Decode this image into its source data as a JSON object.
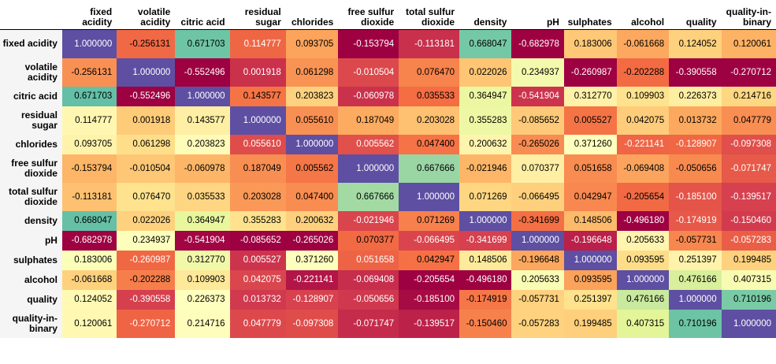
{
  "chart_data": {
    "type": "heatmap",
    "columns": [
      "fixed acidity",
      "volatile acidity",
      "citric acid",
      "residual sugar",
      "chlorides",
      "free sulfur dioxide",
      "total sulfur dioxide",
      "density",
      "pH",
      "sulphates",
      "alcohol",
      "quality",
      "quality-in-binary"
    ],
    "rows": [
      "fixed acidity",
      "volatile acidity",
      "citric acid",
      "residual sugar",
      "chlorides",
      "free sulfur dioxide",
      "total sulfur dioxide",
      "density",
      "pH",
      "sulphates",
      "alcohol",
      "quality",
      "quality-in-binary"
    ],
    "values": [
      [
        1.0,
        -0.256131,
        0.671703,
        0.114777,
        0.093705,
        -0.153794,
        -0.113181,
        0.668047,
        -0.682978,
        0.183006,
        -0.061668,
        0.124052,
        0.120061
      ],
      [
        -0.256131,
        1.0,
        -0.552496,
        0.001918,
        0.061298,
        -0.010504,
        0.07647,
        0.022026,
        0.234937,
        -0.260987,
        -0.202288,
        -0.390558,
        -0.270712
      ],
      [
        0.671703,
        -0.552496,
        1.0,
        0.143577,
        0.203823,
        -0.060978,
        0.035533,
        0.364947,
        -0.541904,
        0.31277,
        0.109903,
        0.226373,
        0.214716
      ],
      [
        0.114777,
        0.001918,
        0.143577,
        1.0,
        0.05561,
        0.187049,
        0.203028,
        0.355283,
        -0.085652,
        0.005527,
        0.042075,
        0.013732,
        0.047779
      ],
      [
        0.093705,
        0.061298,
        0.203823,
        0.05561,
        1.0,
        0.005562,
        0.0474,
        0.200632,
        -0.265026,
        0.37126,
        -0.221141,
        -0.128907,
        -0.097308
      ],
      [
        -0.153794,
        -0.010504,
        -0.060978,
        0.187049,
        0.005562,
        1.0,
        0.667666,
        -0.021946,
        0.070377,
        0.051658,
        -0.069408,
        -0.050656,
        -0.071747
      ],
      [
        -0.113181,
        0.07647,
        0.035533,
        0.203028,
        0.0474,
        0.667666,
        1.0,
        0.071269,
        -0.066495,
        0.042947,
        -0.205654,
        -0.1851,
        -0.139517
      ],
      [
        0.668047,
        0.022026,
        0.364947,
        0.355283,
        0.200632,
        -0.021946,
        0.071269,
        1.0,
        -0.341699,
        0.148506,
        -0.49618,
        -0.174919,
        -0.15046
      ],
      [
        -0.682978,
        0.234937,
        -0.541904,
        -0.085652,
        -0.265026,
        0.070377,
        -0.066495,
        -0.341699,
        1.0,
        -0.196648,
        0.205633,
        -0.057731,
        -0.057283
      ],
      [
        0.183006,
        -0.260987,
        0.31277,
        0.005527,
        0.37126,
        0.051658,
        0.042947,
        0.148506,
        -0.196648,
        1.0,
        0.093595,
        0.251397,
        0.199485
      ],
      [
        -0.061668,
        -0.202288,
        0.109903,
        0.042075,
        -0.221141,
        -0.069408,
        -0.205654,
        -0.49618,
        0.205633,
        0.093595,
        1.0,
        0.476166,
        0.407315
      ],
      [
        0.124052,
        -0.390558,
        0.226373,
        0.013732,
        -0.128907,
        -0.050656,
        -0.1851,
        -0.174919,
        -0.057731,
        0.251397,
        0.476166,
        1.0,
        0.710196
      ],
      [
        0.120061,
        -0.270712,
        0.214716,
        0.047779,
        -0.097308,
        -0.071747,
        -0.139517,
        -0.15046,
        -0.057283,
        0.199485,
        0.407315,
        0.710196,
        1.0
      ]
    ],
    "colormap": "Spectral",
    "color_scale_per_column": true,
    "decimals": 6
  }
}
